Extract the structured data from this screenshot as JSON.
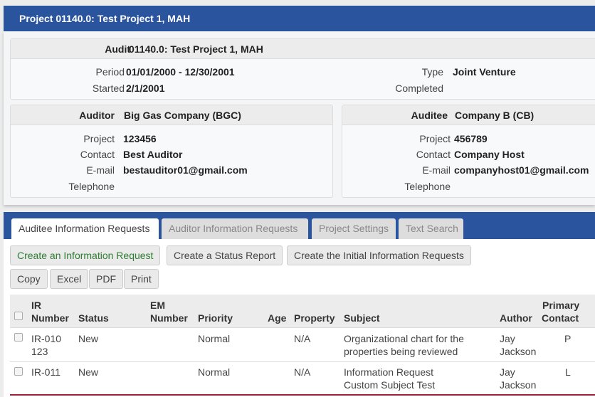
{
  "header": {
    "title": "Project 01140.0: Test Project 1, MAH"
  },
  "audit": {
    "label": "Audit",
    "value": "01140.0: Test Project 1, MAH",
    "period_label": "Period",
    "period": "01/01/2000 - 12/30/2001",
    "started_label": "Started",
    "started": "2/1/2001",
    "type_label": "Type",
    "type": "Joint Venture",
    "completed_label": "Completed"
  },
  "auditor": {
    "label": "Auditor",
    "name": "Big Gas Company (BGC)",
    "project_label": "Project",
    "project": "123456",
    "contact_label": "Contact",
    "contact": "Best Auditor",
    "email_label": "E-mail",
    "email": "bestauditor01@gmail.com",
    "telephone_label": "Telephone"
  },
  "auditee": {
    "label": "Auditee",
    "name": "Company B (CB)",
    "project_label": "Project",
    "project": "456789",
    "contact_label": "Contact",
    "contact": "Company Host",
    "email_label": "E-mail",
    "email": "companyhost01@gmail.com",
    "telephone_label": "Telephone"
  },
  "tabs": [
    {
      "label": "Auditee Information Requests",
      "active": true
    },
    {
      "label": "Auditor Information Requests"
    },
    {
      "label": "Project Settings"
    },
    {
      "label": "Text Search"
    }
  ],
  "actions": {
    "create_ir": "Create an Information Request",
    "status_report": "Create a Status Report",
    "initial_irs": "Create the Initial Information Requests",
    "create_ir_color": "#2e7d32"
  },
  "export": {
    "copy": "Copy",
    "excel": "Excel",
    "pdf": "PDF",
    "print": "Print"
  },
  "table": {
    "headers": {
      "ir1": "IR",
      "ir2": "Number",
      "status": "Status",
      "em1": "EM",
      "em2": "Number",
      "priority": "Priority",
      "age": "Age",
      "property": "Property",
      "subject": "Subject",
      "author": "Author",
      "contact1": "Primary",
      "contact2": "Contact"
    },
    "rows": [
      {
        "ir": "IR-010",
        "ir2": "123",
        "status": "New",
        "priority": "Normal",
        "property": "N/A",
        "subject1": "Organizational chart for the",
        "subject2": "properties being reviewed",
        "author1": "Jay",
        "author2": "Jackson",
        "contact": "P"
      },
      {
        "ir": "IR-011",
        "ir2": "",
        "status": "New",
        "priority": "Normal",
        "property": "N/A",
        "subject1": "Information Request",
        "subject2": "Custom Subject Test",
        "author1": "Jay",
        "author2": "Jackson",
        "contact": "L"
      }
    ]
  }
}
